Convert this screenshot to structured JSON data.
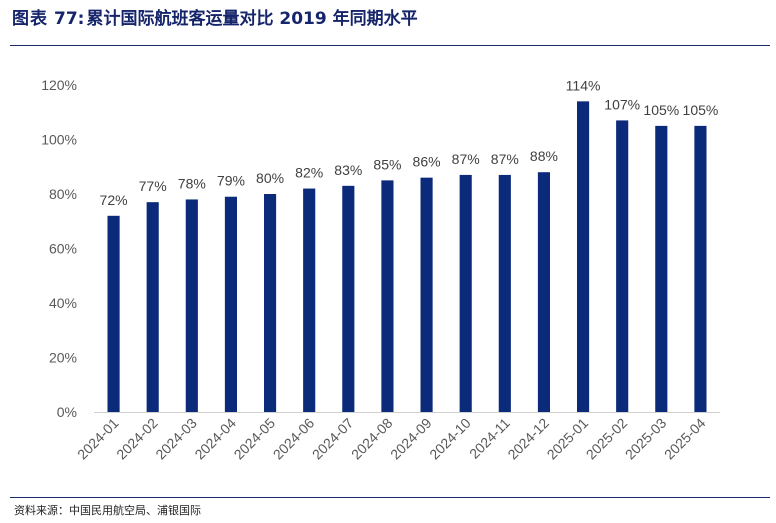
{
  "figure": {
    "prefix": "图表",
    "number": "77:",
    "title": "累计国际航班客运量对比 2019 年同期水平",
    "source": "资料来源：中国民用航空局、浦银国际"
  },
  "chart_data": {
    "type": "bar",
    "title": "累计国际航班客运量对比 2019 年同期水平",
    "xlabel": "",
    "ylabel": "",
    "categories": [
      "2024-01",
      "2024-02",
      "2024-03",
      "2024-04",
      "2024-05",
      "2024-06",
      "2024-07",
      "2024-08",
      "2024-09",
      "2024-10",
      "2024-11",
      "2024-12",
      "2025-01",
      "2025-02",
      "2025-03",
      "2025-04"
    ],
    "values": [
      72,
      77,
      78,
      79,
      80,
      82,
      83,
      85,
      86,
      87,
      87,
      88,
      114,
      107,
      105,
      105
    ],
    "value_labels": [
      "72%",
      "77%",
      "78%",
      "79%",
      "80%",
      "82%",
      "83%",
      "85%",
      "86%",
      "87%",
      "87%",
      "88%",
      "114%",
      "107%",
      "105%",
      "105%"
    ],
    "ylim": [
      0,
      120
    ],
    "yticks": [
      0,
      20,
      40,
      60,
      80,
      100,
      120
    ],
    "ytick_labels": [
      "0%",
      "20%",
      "40%",
      "60%",
      "80%",
      "100%",
      "120%"
    ],
    "bar_color": "#0b2a7a",
    "grid": false,
    "legend": "none"
  }
}
